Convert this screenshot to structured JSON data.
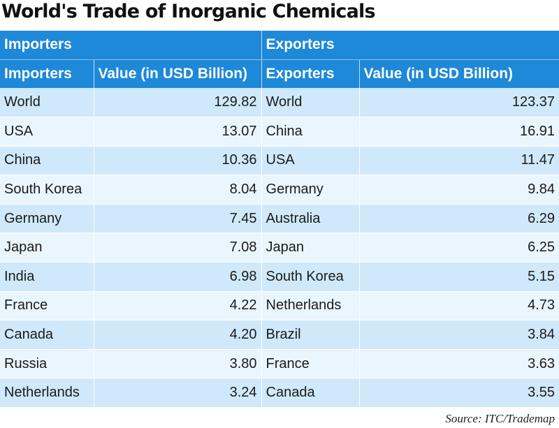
{
  "title": "World's Trade of Inorganic Chemicals",
  "source": "Source: ITC/Trademap",
  "colors": {
    "header": "#1e88d9",
    "row_odd": "#cfe9fa",
    "row_even": "#eaf6fd"
  },
  "chart_data": {
    "type": "table",
    "title": "World's Trade of Inorganic Chemicals",
    "group_headers": [
      "Importers",
      "Exporters"
    ],
    "columns": [
      "Importers",
      "Value (in USD Billion)",
      "Exporters",
      "Value (in USD Billion)"
    ],
    "rows": [
      [
        "World",
        "129.82",
        "World",
        "123.37"
      ],
      [
        "USA",
        "13.07",
        "China",
        "16.91"
      ],
      [
        "China",
        "10.36",
        "USA",
        "11.47"
      ],
      [
        "South Korea",
        "8.04",
        "Germany",
        "9.84"
      ],
      [
        "Germany",
        "7.45",
        "Australia",
        "6.29"
      ],
      [
        "Japan",
        "7.08",
        "Japan",
        "6.25"
      ],
      [
        "India",
        "6.98",
        "South Korea",
        "5.15"
      ],
      [
        "France",
        "4.22",
        "Netherlands",
        "4.73"
      ],
      [
        "Canada",
        "4.20",
        "Brazil",
        "3.84"
      ],
      [
        "Russia",
        "3.80",
        "France",
        "3.63"
      ],
      [
        "Netherlands",
        "3.24",
        "Canada",
        "3.55"
      ]
    ],
    "source": "Source: ITC/Trademap"
  }
}
